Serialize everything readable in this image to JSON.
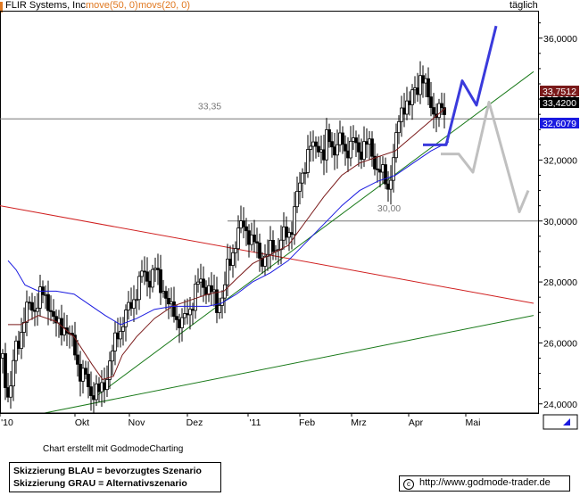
{
  "header": {
    "company": "FLIR Systems, Inc.",
    "ma1": "move(50, 0)",
    "ma2": "movs(20, 0)",
    "period": "täglich"
  },
  "colors": {
    "ma50": "#7a1a1a",
    "ma20": "#1a1ae0",
    "trend_green": "#1a7a1a",
    "trend_red": "#d02020",
    "scenario_blue": "#3a3adc",
    "scenario_grey": "#c0c0c0",
    "header_orange": "#e07820"
  },
  "chart_data": {
    "type": "candlestick",
    "ylim": [
      23.7,
      36.9
    ],
    "y_ticks": [
      "24,0000",
      "26,0000",
      "28,0000",
      "30,0000",
      "32,0000",
      "34,0000",
      "36,0000"
    ],
    "x_labels": [
      "'10",
      "Okt",
      "Nov",
      "Dez",
      "'11",
      "Feb",
      "Mrz",
      "Apr",
      "Mai"
    ],
    "hlines": [
      {
        "label": "33,35",
        "value": 33.35
      },
      {
        "label": "30,00",
        "value": 30.0
      }
    ],
    "price_tags": [
      {
        "text": "33,7512",
        "value": 33.75,
        "style": "ma50"
      },
      {
        "text": "33,4200",
        "value": 33.42,
        "style": "close"
      },
      {
        "text": "32,6079",
        "value": 32.61,
        "style": "ma20"
      }
    ],
    "close_path": [
      [
        0,
        25.5
      ],
      [
        6,
        24.3
      ],
      [
        10,
        24.6
      ],
      [
        14,
        25.8
      ],
      [
        20,
        26.3
      ],
      [
        24,
        26.8
      ],
      [
        30,
        27.2
      ],
      [
        36,
        27.2
      ],
      [
        42,
        27.5
      ],
      [
        48,
        27.5
      ],
      [
        54,
        27.2
      ],
      [
        58,
        26.5
      ],
      [
        64,
        26.6
      ],
      [
        70,
        26.6
      ],
      [
        74,
        26.1
      ],
      [
        80,
        26.0
      ],
      [
        84,
        25.4
      ],
      [
        88,
        24.8
      ],
      [
        92,
        24.9
      ],
      [
        96,
        24.6
      ],
      [
        100,
        24.4
      ],
      [
        104,
        24.4
      ],
      [
        108,
        24.3
      ],
      [
        112,
        24.6
      ],
      [
        116,
        24.9
      ],
      [
        120,
        25.3
      ],
      [
        124,
        25.7
      ],
      [
        128,
        26.4
      ],
      [
        132,
        26.5
      ],
      [
        136,
        26.7
      ],
      [
        140,
        27.0
      ],
      [
        144,
        27.3
      ],
      [
        148,
        27.6
      ],
      [
        152,
        27.8
      ],
      [
        156,
        28.2
      ],
      [
        160,
        28.3
      ],
      [
        164,
        28.1
      ],
      [
        168,
        28.2
      ],
      [
        172,
        28.4
      ],
      [
        176,
        27.9
      ],
      [
        180,
        27.9
      ],
      [
        184,
        27.3
      ],
      [
        188,
        27.0
      ],
      [
        192,
        27.1
      ],
      [
        196,
        26.8
      ],
      [
        200,
        26.6
      ],
      [
        204,
        26.7
      ],
      [
        208,
        27.1
      ],
      [
        212,
        27.3
      ],
      [
        216,
        27.7
      ],
      [
        220,
        27.9
      ],
      [
        224,
        28.0
      ],
      [
        228,
        27.9
      ],
      [
        232,
        27.7
      ],
      [
        236,
        27.5
      ],
      [
        240,
        27.2
      ],
      [
        244,
        27.5
      ],
      [
        248,
        27.6
      ],
      [
        252,
        28.4
      ],
      [
        256,
        28.8
      ],
      [
        260,
        29.3
      ],
      [
        264,
        29.6
      ],
      [
        268,
        29.8
      ],
      [
        272,
        29.8
      ],
      [
        276,
        29.6
      ],
      [
        280,
        29.3
      ],
      [
        284,
        29.1
      ],
      [
        288,
        28.9
      ],
      [
        292,
        28.8
      ],
      [
        296,
        28.8
      ],
      [
        300,
        29.0
      ],
      [
        304,
        29.2
      ],
      [
        308,
        29.2
      ],
      [
        312,
        29.3
      ],
      [
        316,
        29.5
      ],
      [
        320,
        29.6
      ],
      [
        324,
        29.9
      ],
      [
        328,
        30.5
      ],
      [
        332,
        31.0
      ],
      [
        336,
        31.6
      ],
      [
        340,
        32.1
      ],
      [
        344,
        32.4
      ],
      [
        348,
        32.3
      ],
      [
        352,
        32.6
      ],
      [
        356,
        32.5
      ],
      [
        360,
        32.0
      ],
      [
        364,
        32.8
      ],
      [
        368,
        32.6
      ],
      [
        372,
        32.4
      ],
      [
        376,
        32.5
      ],
      [
        380,
        32.6
      ],
      [
        384,
        32.3
      ],
      [
        388,
        32.5
      ],
      [
        392,
        32.6
      ],
      [
        396,
        32.4
      ],
      [
        400,
        32.2
      ],
      [
        404,
        32.6
      ],
      [
        408,
        32.5
      ],
      [
        412,
        32.3
      ],
      [
        416,
        32.0
      ],
      [
        420,
        31.8
      ],
      [
        424,
        31.6
      ],
      [
        428,
        31.3
      ],
      [
        432,
        31.1
      ],
      [
        436,
        31.8
      ],
      [
        440,
        32.4
      ],
      [
        444,
        33.2
      ],
      [
        448,
        33.8
      ],
      [
        452,
        34.0
      ],
      [
        456,
        33.7
      ],
      [
        460,
        34.2
      ],
      [
        464,
        34.4
      ],
      [
        468,
        34.8
      ],
      [
        472,
        34.5
      ],
      [
        476,
        34.1
      ],
      [
        480,
        33.9
      ],
      [
        484,
        33.6
      ],
      [
        488,
        33.4
      ],
      [
        492,
        33.7
      ],
      [
        496,
        33.4
      ]
    ],
    "ma50_path": [
      [
        6,
        26.6
      ],
      [
        20,
        26.6
      ],
      [
        40,
        26.9
      ],
      [
        60,
        26.7
      ],
      [
        80,
        26.2
      ],
      [
        100,
        25.3
      ],
      [
        112,
        24.8
      ],
      [
        124,
        24.9
      ],
      [
        134,
        25.6
      ],
      [
        150,
        26.2
      ],
      [
        170,
        26.8
      ],
      [
        190,
        27.2
      ],
      [
        210,
        27.4
      ],
      [
        230,
        27.6
      ],
      [
        248,
        27.7
      ],
      [
        262,
        28.1
      ],
      [
        280,
        28.6
      ],
      [
        300,
        28.9
      ],
      [
        320,
        29.2
      ],
      [
        340,
        30.0
      ],
      [
        360,
        30.8
      ],
      [
        380,
        31.5
      ],
      [
        400,
        31.9
      ],
      [
        420,
        32.1
      ],
      [
        440,
        32.3
      ],
      [
        460,
        32.8
      ],
      [
        480,
        33.3
      ],
      [
        496,
        33.7
      ]
    ],
    "ma20_path": [
      [
        6,
        28.7
      ],
      [
        15,
        28.4
      ],
      [
        25,
        27.9
      ],
      [
        40,
        27.7
      ],
      [
        60,
        27.7
      ],
      [
        80,
        27.6
      ],
      [
        100,
        27.2
      ],
      [
        115,
        26.9
      ],
      [
        132,
        26.6
      ],
      [
        150,
        26.8
      ],
      [
        170,
        27.1
      ],
      [
        190,
        27.2
      ],
      [
        210,
        27.2
      ],
      [
        230,
        27.2
      ],
      [
        245,
        27.3
      ],
      [
        262,
        27.6
      ],
      [
        280,
        28.0
      ],
      [
        300,
        28.3
      ],
      [
        320,
        28.7
      ],
      [
        340,
        29.3
      ],
      [
        360,
        29.9
      ],
      [
        380,
        30.5
      ],
      [
        400,
        31.0
      ],
      [
        420,
        31.3
      ],
      [
        440,
        31.5
      ],
      [
        460,
        31.9
      ],
      [
        480,
        32.3
      ],
      [
        500,
        32.6
      ]
    ],
    "trendlines": [
      {
        "color": "trend_green",
        "x1": 110,
        "y1": 24.3,
        "x2": 598,
        "y2": 34.9
      },
      {
        "color": "trend_green",
        "x1": 50,
        "y1": 23.7,
        "x2": 598,
        "y2": 26.9
      },
      {
        "color": "trend_red",
        "x1": 0,
        "y1": 30.5,
        "x2": 598,
        "y2": 27.3
      }
    ],
    "scenario_blue": [
      [
        474,
        32.5
      ],
      [
        500,
        32.5
      ],
      [
        518,
        34.6
      ],
      [
        534,
        33.8
      ],
      [
        556,
        36.4
      ]
    ],
    "scenario_grey": [
      [
        494,
        32.2
      ],
      [
        514,
        32.2
      ],
      [
        530,
        31.6
      ],
      [
        548,
        33.9
      ],
      [
        582,
        30.3
      ],
      [
        592,
        31.0
      ]
    ]
  },
  "footer": {
    "credit": "Chart erstellt mit GodmodeCharting",
    "legend_blue": "Skizzierung BLAU = bevorzugtes Szenario",
    "legend_grey": "Skizzierung GRAU = Alternativszenario",
    "copyright_icon": "copyright-icon",
    "url": "http://www.godmode-trader.de"
  }
}
